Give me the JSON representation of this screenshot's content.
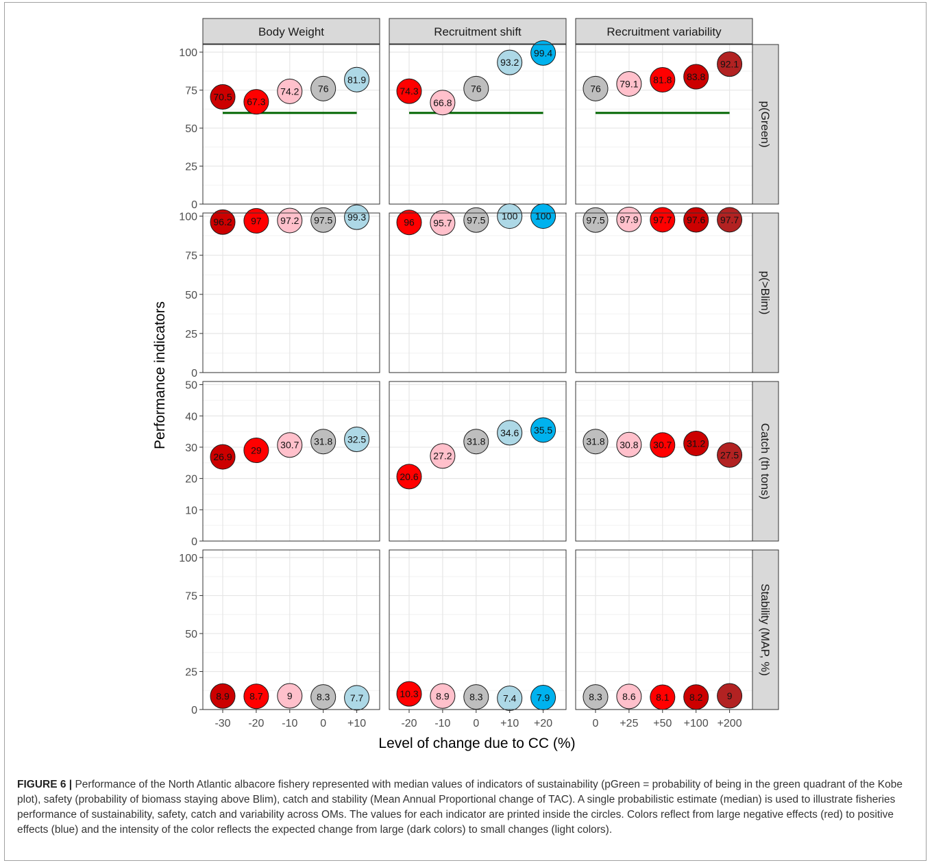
{
  "figure_label": "FIGURE 6 |",
  "caption": "Performance of the North Atlantic albacore fishery represented with median values of indicators of sustainability (pGreen = probability of being in the green quadrant of the Kobe plot), safety (probability of biomass staying above Blim), catch and stability (Mean Annual Proportional change of TAC). A single probabilistic estimate (median) is used to illustrate fisheries performance of sustainability, safety, catch and variability across OMs. The values for each indicator are printed inside the circles. Colors reflect from large negative effects (red) to positive effects (blue) and the intensity of the color reflects the expected change from large (dark colors) to small changes (light colors).",
  "chart_data": {
    "type": "scatter",
    "xlabel": "Level of change due to CC (%)",
    "ylabel": "Performance indicators",
    "grid": true,
    "colors": {
      "dark_red": "#cc0000",
      "red": "#ff0000",
      "pink": "#ffc0cb",
      "grey": "#bebebe",
      "light_blue": "#add8e6",
      "blue": "#00b2ee",
      "brown": "#b22222",
      "reference_line": "#006400",
      "strip": "#d9d9d9"
    },
    "columns": [
      {
        "name": "Body Weight",
        "x_categories": [
          "-30",
          "-20",
          "-10",
          "0",
          "+10"
        ]
      },
      {
        "name": "Recruitment shift",
        "x_categories": [
          "-20",
          "-10",
          "0",
          "+10",
          "+20"
        ]
      },
      {
        "name": "Recruitment variability",
        "x_categories": [
          "0",
          "+25",
          "+50",
          "+100",
          "+200"
        ]
      }
    ],
    "rows": [
      {
        "name": "p(Green)",
        "ylim": [
          0,
          105
        ],
        "yticks": [
          0,
          25,
          50,
          75,
          100
        ],
        "reference_line": 60,
        "panels": [
          {
            "values": [
              70.5,
              67.3,
              74.2,
              76,
              81.9
            ],
            "labels": [
              "70.5",
              "67.3",
              "74.2",
              "76",
              "81.9"
            ],
            "colors": [
              "dark_red",
              "red",
              "pink",
              "grey",
              "light_blue"
            ]
          },
          {
            "values": [
              74.3,
              66.8,
              76,
              93.2,
              99.4
            ],
            "labels": [
              "74.3",
              "66.8",
              "76",
              "93.2",
              "99.4"
            ],
            "colors": [
              "red",
              "pink",
              "grey",
              "light_blue",
              "blue"
            ]
          },
          {
            "values": [
              76,
              79.1,
              81.8,
              83.8,
              92.1
            ],
            "labels": [
              "76",
              "79.1",
              "81.8",
              "83.8",
              "92.1"
            ],
            "colors": [
              "grey",
              "pink",
              "red",
              "dark_red",
              "brown"
            ]
          }
        ]
      },
      {
        "name": "p(>Blim)",
        "ylim": [
          0,
          102
        ],
        "yticks": [
          0,
          25,
          50,
          75,
          100
        ],
        "panels": [
          {
            "values": [
              96.2,
              97,
              97.2,
              97.5,
              99.3
            ],
            "labels": [
              "96.2",
              "97",
              "97.2",
              "97.5",
              "99.3"
            ],
            "colors": [
              "dark_red",
              "red",
              "pink",
              "grey",
              "light_blue"
            ]
          },
          {
            "values": [
              96,
              95.7,
              97.5,
              100,
              100
            ],
            "labels": [
              "96",
              "95.7",
              "97.5",
              "100",
              "100"
            ],
            "colors": [
              "red",
              "pink",
              "grey",
              "light_blue",
              "blue"
            ]
          },
          {
            "values": [
              97.5,
              97.9,
              97.7,
              97.6,
              97.7
            ],
            "labels": [
              "97.5",
              "97.9",
              "97.7",
              "97.6",
              "97.7"
            ],
            "colors": [
              "grey",
              "pink",
              "red",
              "dark_red",
              "brown"
            ]
          }
        ]
      },
      {
        "name": "Catch (th tons)",
        "ylim": [
          0,
          51
        ],
        "yticks": [
          0,
          10,
          20,
          30,
          40,
          50
        ],
        "panels": [
          {
            "values": [
              26.9,
              29,
              30.7,
              31.8,
              32.5
            ],
            "labels": [
              "26.9",
              "29",
              "30.7",
              "31.8",
              "32.5"
            ],
            "colors": [
              "dark_red",
              "red",
              "pink",
              "grey",
              "light_blue"
            ]
          },
          {
            "values": [
              20.6,
              27.2,
              31.8,
              34.6,
              35.5
            ],
            "labels": [
              "20.6",
              "27.2",
              "31.8",
              "34.6",
              "35.5"
            ],
            "colors": [
              "red",
              "pink",
              "grey",
              "light_blue",
              "blue"
            ]
          },
          {
            "values": [
              31.8,
              30.8,
              30.7,
              31.2,
              27.5
            ],
            "labels": [
              "31.8",
              "30.8",
              "30.7",
              "31.2",
              "27.5"
            ],
            "colors": [
              "grey",
              "pink",
              "red",
              "dark_red",
              "brown"
            ]
          }
        ]
      },
      {
        "name": "Stability (MAP, %)",
        "ylim": [
          0,
          105
        ],
        "yticks": [
          0,
          25,
          50,
          75,
          100
        ],
        "panels": [
          {
            "values": [
              8.9,
              8.7,
              9,
              8.3,
              7.7
            ],
            "labels": [
              "8.9",
              "8.7",
              "9",
              "8.3",
              "7.7"
            ],
            "colors": [
              "dark_red",
              "red",
              "pink",
              "grey",
              "light_blue"
            ]
          },
          {
            "values": [
              10.3,
              8.9,
              8.3,
              7.4,
              7.9
            ],
            "labels": [
              "10.3",
              "8.9",
              "8.3",
              "7.4",
              "7.9"
            ],
            "colors": [
              "red",
              "pink",
              "grey",
              "light_blue",
              "blue"
            ]
          },
          {
            "values": [
              8.3,
              8.6,
              8.1,
              8.2,
              9
            ],
            "labels": [
              "8.3",
              "8.6",
              "8.1",
              "8.2",
              "9"
            ],
            "colors": [
              "grey",
              "pink",
              "red",
              "dark_red",
              "brown"
            ]
          }
        ]
      }
    ]
  }
}
